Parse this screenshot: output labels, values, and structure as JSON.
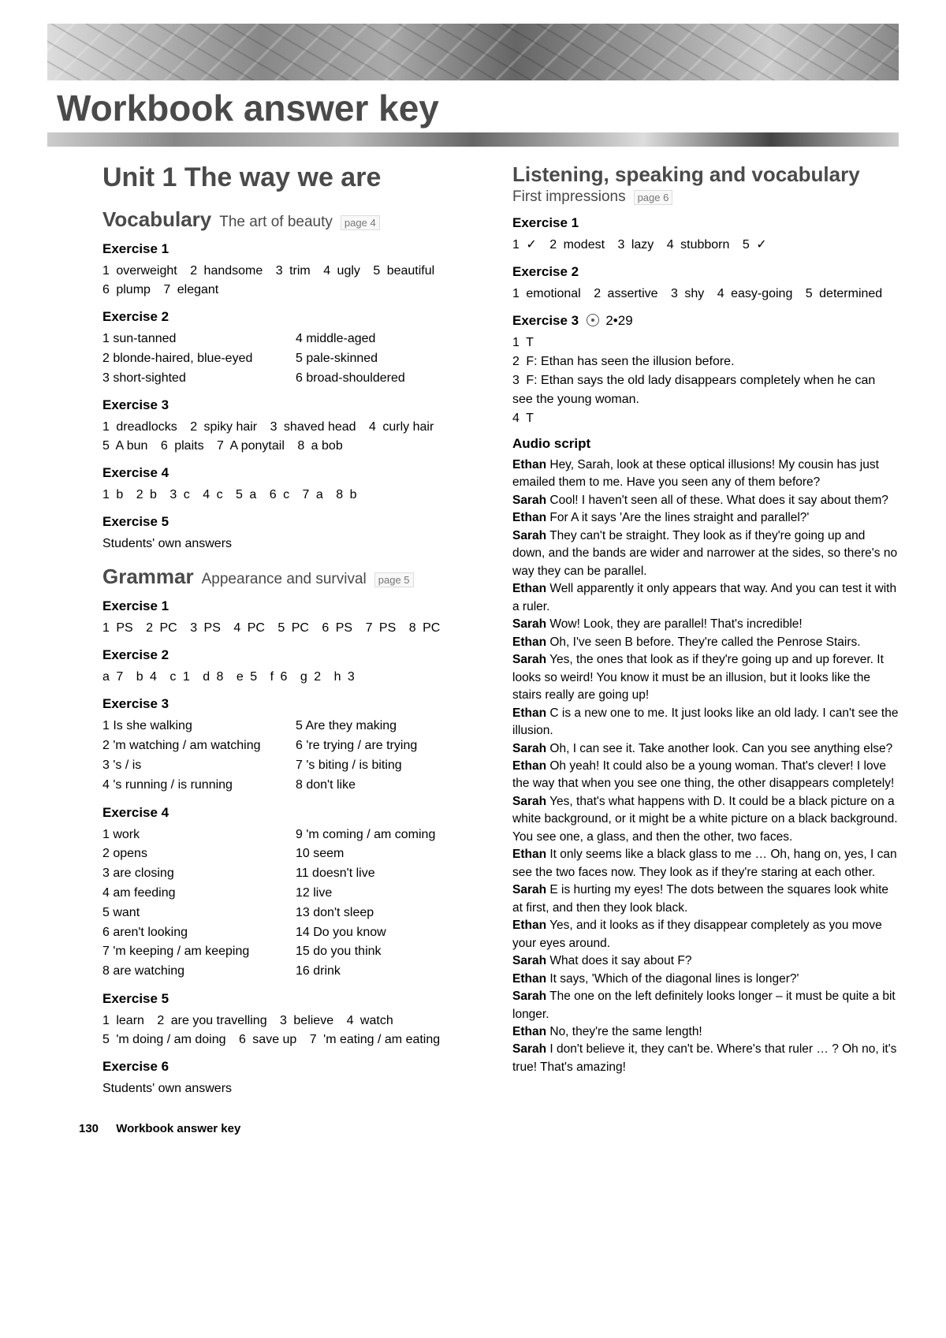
{
  "header": {
    "main_title": "Workbook answer key"
  },
  "footer": {
    "page_num": "130",
    "label": "Workbook answer key"
  },
  "left": {
    "unit_title": "Unit 1 The way we are",
    "vocab": {
      "heading": "Vocabulary",
      "sub": "The art of beauty",
      "page": "page 4"
    },
    "vocab_ex1_title": "Exercise 1",
    "vocab_ex1": [
      "overweight",
      "handsome",
      "trim",
      "ugly",
      "beautiful",
      "plump",
      "elegant"
    ],
    "vocab_ex2_title": "Exercise 2",
    "vocab_ex2_left": [
      "sun-tanned",
      "blonde-haired, blue-eyed",
      "short-sighted"
    ],
    "vocab_ex2_right": [
      "middle-aged",
      "pale-skinned",
      "broad-shouldered"
    ],
    "vocab_ex3_title": "Exercise 3",
    "vocab_ex3": [
      "dreadlocks",
      "spiky hair",
      "shaved head",
      "curly hair",
      "A bun",
      "plaits",
      "A ponytail",
      "a bob"
    ],
    "vocab_ex4_title": "Exercise 4",
    "vocab_ex4": [
      "b",
      "b",
      "c",
      "c",
      "a",
      "c",
      "a",
      "b"
    ],
    "vocab_ex5_title": "Exercise 5",
    "vocab_ex5_text": "Students' own answers",
    "grammar": {
      "heading": "Grammar",
      "sub": "Appearance and survival",
      "page": "page 5"
    },
    "g_ex1_title": "Exercise 1",
    "g_ex1": [
      "PS",
      "PC",
      "PS",
      "PC",
      "PC",
      "PS",
      "PS",
      "PC"
    ],
    "g_ex2_title": "Exercise 2",
    "g_ex2_pairs": [
      [
        "a",
        "7"
      ],
      [
        "b",
        "4"
      ],
      [
        "c",
        "1"
      ],
      [
        "d",
        "8"
      ],
      [
        "e",
        "5"
      ],
      [
        "f",
        "6"
      ],
      [
        "g",
        "2"
      ],
      [
        "h",
        "3"
      ]
    ],
    "g_ex3_title": "Exercise 3",
    "g_ex3_left": [
      "Is she walking",
      "'m watching / am watching",
      "'s / is",
      "'s running / is running"
    ],
    "g_ex3_right": [
      "Are they making",
      "'re trying / are trying",
      "'s biting / is biting",
      "don't like"
    ],
    "g_ex4_title": "Exercise 4",
    "g_ex4_left": [
      "work",
      "opens",
      "are closing",
      "am feeding",
      "want",
      "aren't looking",
      "'m keeping / am keeping",
      "are watching"
    ],
    "g_ex4_right": [
      "'m coming / am coming",
      "seem",
      "doesn't live",
      "live",
      "don't sleep",
      "Do you know",
      "do you think",
      "drink"
    ],
    "g_ex5_title": "Exercise 5",
    "g_ex5": [
      "learn",
      "are you travelling",
      "believe",
      "watch",
      "'m doing / am doing",
      "save up",
      "'m eating / am eating"
    ],
    "g_ex6_title": "Exercise 6",
    "g_ex6_text": "Students' own answers"
  },
  "right": {
    "lsv": {
      "heading": "Listening, speaking and vocabulary",
      "sub": "First impressions",
      "page": "page 6"
    },
    "ex1_title": "Exercise 1",
    "ex1": [
      "✓",
      "modest",
      "lazy",
      "stubborn",
      "✓"
    ],
    "ex2_title": "Exercise 2",
    "ex2": [
      "emotional",
      "assertive",
      "shy",
      "easy-going",
      "determined"
    ],
    "ex3_title": "Exercise 3",
    "ex3_track": "2•29",
    "ex3_lines": [
      "T",
      "F: Ethan has seen the illusion before.",
      "F: Ethan says the old lady disappears completely when he can see the young woman.",
      "T"
    ],
    "audio_title": "Audio script",
    "script": [
      [
        "Ethan",
        "Hey, Sarah, look at these optical illusions! My cousin has just emailed them to me. Have you seen any of them before?"
      ],
      [
        "Sarah",
        "Cool! I haven't seen all of these. What does it say about them?"
      ],
      [
        "Ethan",
        "For A it says 'Are the lines straight and parallel?'"
      ],
      [
        "Sarah",
        "They can't be straight. They look as if they're going up and down, and the bands are wider and narrower at the sides, so there's no way they can be parallel."
      ],
      [
        "Ethan",
        "Well apparently it only appears that way. And you can test it with a ruler."
      ],
      [
        "Sarah",
        "Wow! Look, they are parallel! That's incredible!"
      ],
      [
        "Ethan",
        "Oh, I've seen B before. They're called the Penrose Stairs."
      ],
      [
        "Sarah",
        "Yes, the ones that look as if they're going up and up forever. It looks so weird! You know it must be an illusion, but it looks like the stairs really are going up!"
      ],
      [
        "Ethan",
        "C is a new one to me. It just looks like an old lady. I can't see the illusion."
      ],
      [
        "Sarah",
        "Oh, I can see it. Take another look. Can you see anything else?"
      ],
      [
        "Ethan",
        "Oh yeah! It could also be a young woman. That's clever! I love the way that when you see one thing, the other disappears completely!"
      ],
      [
        "Sarah",
        "Yes, that's what happens with D. It could be a black picture on a white background, or it might be a white picture on a black background. You see one, a glass, and then the other, two faces."
      ],
      [
        "Ethan",
        "It only seems like a black glass to me … Oh, hang on, yes, I can see the two faces now. They look as if they're staring at each other."
      ],
      [
        "Sarah",
        "E is hurting my eyes! The dots between the squares look white at first, and then they look black."
      ],
      [
        "Ethan",
        "Yes, and it looks as if they disappear completely as you move your eyes around."
      ],
      [
        "Sarah",
        "What does it say about F?"
      ],
      [
        "Ethan",
        "It says, 'Which of the diagonal lines is longer?'"
      ],
      [
        "Sarah",
        "The one on the left definitely looks longer – it must be quite a bit longer."
      ],
      [
        "Ethan",
        "No, they're the same length!"
      ],
      [
        "Sarah",
        "I don't believe it, they can't be. Where's that ruler … ? Oh no, it's true! That's amazing!"
      ]
    ]
  }
}
